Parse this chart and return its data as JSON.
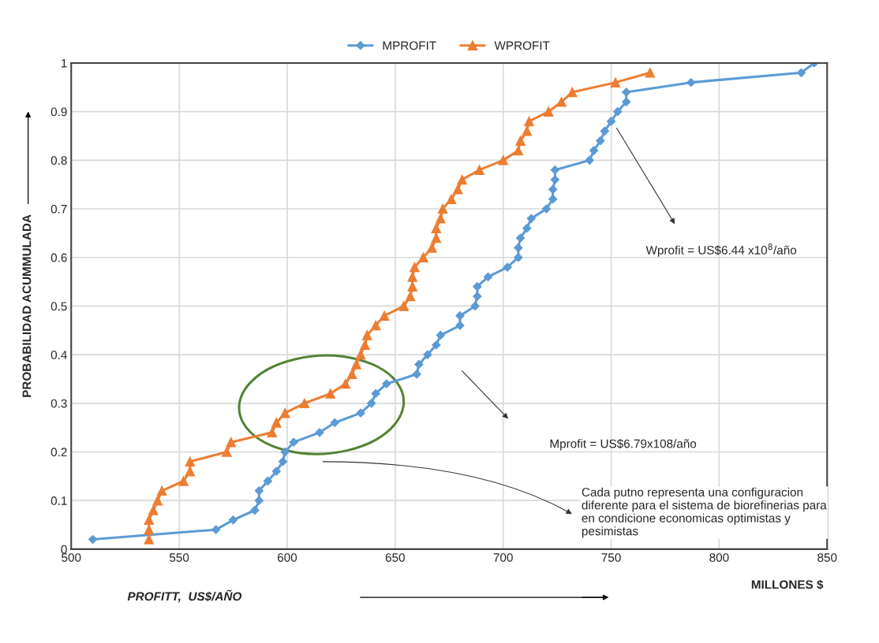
{
  "chart_data": {
    "type": "line",
    "xlabel": "PROFITT,  US$/AÑO",
    "ylabel": "PROBABILIDAD ACUMMULADA",
    "x": [
      0.02,
      0.04,
      0.06,
      0.08,
      0.1,
      0.12,
      0.14,
      0.16,
      0.18,
      0.2,
      0.22,
      0.24,
      0.26,
      0.28,
      0.3,
      0.32,
      0.34,
      0.36,
      0.38,
      0.4,
      0.42,
      0.44,
      0.46,
      0.48,
      0.5,
      0.52,
      0.54,
      0.56,
      0.58,
      0.6,
      0.62,
      0.64,
      0.66,
      0.68,
      0.7,
      0.72,
      0.74,
      0.76,
      0.78,
      0.8,
      0.82,
      0.84,
      0.86,
      0.88,
      0.9,
      0.92,
      0.94,
      0.96,
      0.98,
      1.0
    ],
    "series": [
      {
        "name": "MPROFIT",
        "color": "#5b9bd5",
        "marker": "diamond",
        "values": [
          510,
          567,
          575,
          585,
          587,
          587,
          591,
          595,
          598,
          599,
          603,
          615,
          622,
          634,
          639,
          641,
          646,
          660,
          661,
          665,
          669,
          671,
          680,
          680,
          687,
          688,
          688,
          693,
          702,
          707,
          707,
          708,
          711,
          713,
          720,
          723,
          723,
          724,
          724,
          740,
          742,
          745,
          747,
          750,
          753,
          757,
          757,
          787,
          838,
          844
        ]
      },
      {
        "name": "WPROFIT",
        "color": "#ed7d31",
        "marker": "triangle",
        "values": [
          536,
          536,
          536,
          538,
          540,
          542,
          552,
          555,
          555,
          572,
          574,
          593,
          595,
          599,
          608,
          620,
          627,
          630,
          632,
          634,
          636,
          637,
          641,
          645,
          654,
          657,
          658,
          658,
          659,
          663,
          667,
          669,
          669,
          671,
          672,
          676,
          679,
          681,
          689,
          700,
          707,
          708,
          711,
          712,
          721,
          727,
          732,
          752,
          768,
          null
        ]
      }
    ],
    "orientation": "horizontal",
    "xlim": [
      500,
      850
    ],
    "xticks": [
      500,
      550,
      600,
      650,
      700,
      750,
      800,
      850
    ],
    "ylim": [
      0,
      1
    ],
    "yticks": [
      0,
      0.1,
      0.2,
      0.3,
      0.4,
      0.5,
      0.6,
      0.7,
      0.8,
      0.9,
      1
    ],
    "grid": true,
    "legend": "top",
    "line_style": "solid",
    "annotations": [
      "Wprofit = US$6.44 x10$^{8}$/año",
      "Mprofit = US$6.79x108/año",
      "Cada putno representa una configuracion diferente para el sistema de biorefinerias para en condicione economicas optimistas y pesimistas",
      "MILLONES $"
    ]
  }
}
